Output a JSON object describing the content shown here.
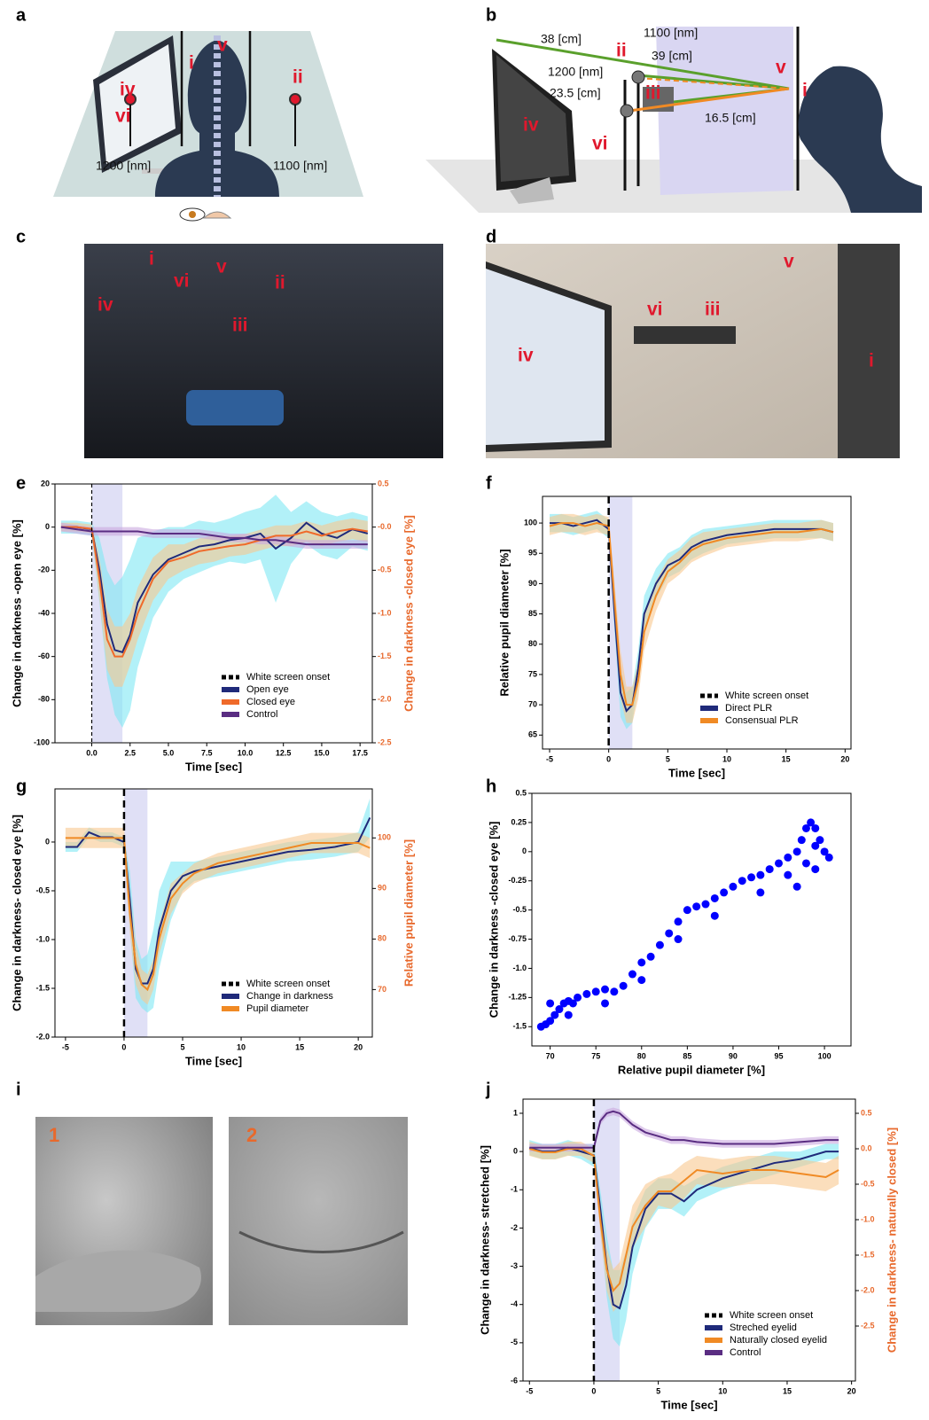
{
  "figure": {
    "panel_letters": [
      "a",
      "b",
      "c",
      "d",
      "e",
      "f",
      "g",
      "h",
      "i",
      "j"
    ],
    "a_labels": [
      "i",
      "v",
      "ii",
      "iv",
      "vi",
      "1200 [nm]",
      "1100 [nm]"
    ],
    "b_labels": [
      "38 [cm]",
      "1100 [nm]",
      "ii",
      "39 [cm]",
      "1200 [nm]",
      "iii",
      "23.5 [cm]",
      "16.5 [cm]",
      "iv",
      "vi",
      "v",
      "i"
    ],
    "c_labels": [
      "i",
      "iv",
      "vi",
      "v",
      "ii",
      "iii"
    ],
    "d_labels": [
      "v",
      "vi",
      "iii",
      "iv",
      "i"
    ],
    "i_labels": [
      "1",
      "2"
    ]
  },
  "chart_data": [
    {
      "type": "line",
      "xlabel": "Time [sec]",
      "ylabel": "Change in darkness -open eye [%]",
      "y2label": "Change in darkness -closed eye [%]",
      "xlim": [
        -2.4,
        18.3
      ],
      "ylim": [
        -100,
        20
      ],
      "y2lim": [
        -2.5,
        0.5
      ],
      "xticks": [
        {
          "value": 0,
          "label": "0.0"
        },
        2.5,
        {
          "value": 5,
          "label": "5.0"
        },
        7.5,
        {
          "value": 10,
          "label": "10.0"
        },
        12.5,
        {
          "value": 15,
          "label": "15.0"
        },
        17.5
      ],
      "yticks": [
        -100,
        -80,
        -60,
        -40,
        -20,
        0,
        20
      ],
      "y2ticks": [
        -2.5,
        {
          "value": -2,
          "label": "-2.0"
        },
        -1.5,
        {
          "value": -1,
          "label": "-1.0"
        },
        -0.5,
        {
          "value": 0,
          "label": "-0.0"
        },
        0.5
      ],
      "highlight": [
        0,
        2
      ],
      "onset": 0,
      "onset_label": "White screen onset",
      "legend": "lower right",
      "x": [
        -2,
        -1,
        0,
        0.5,
        1,
        1.5,
        2,
        2.5,
        3,
        4,
        5,
        6,
        7,
        8,
        9,
        10,
        11,
        12,
        13,
        14,
        15,
        16,
        17,
        18
      ],
      "series": [
        {
          "name": "Open eye",
          "color": "#1f2a7a",
          "band_color": "#7ee8f4",
          "values": [
            0,
            0,
            -1,
            -20,
            -45,
            -57,
            -58,
            -50,
            -35,
            -22,
            -15,
            -12,
            -9,
            -8,
            -6,
            -5,
            -3,
            -10,
            -5,
            2,
            -3,
            -5,
            -1,
            -3
          ],
          "spread": [
            3,
            3,
            3,
            15,
            25,
            30,
            35,
            35,
            30,
            20,
            15,
            12,
            12,
            10,
            10,
            12,
            12,
            25,
            12,
            10,
            10,
            10,
            8,
            8
          ]
        },
        {
          "name": "Closed eye",
          "color": "#ef6a2a",
          "band_color": "#f9c890",
          "axis": "y2",
          "values": [
            0,
            0,
            -0.02,
            -0.6,
            -1.3,
            -1.5,
            -1.5,
            -1.3,
            -1.0,
            -0.6,
            -0.4,
            -0.35,
            -0.28,
            -0.25,
            -0.22,
            -0.2,
            -0.15,
            -0.1,
            -0.1,
            -0.05,
            -0.1,
            -0.05,
            -0.02,
            -0.05
          ],
          "spread": [
            0.05,
            0.05,
            0.05,
            0.25,
            0.35,
            0.35,
            0.35,
            0.3,
            0.3,
            0.25,
            0.2,
            0.15,
            0.15,
            0.15,
            0.12,
            0.12,
            0.12,
            0.12,
            0.12,
            0.12,
            0.12,
            0.12,
            0.12,
            0.12
          ]
        },
        {
          "name": "Control",
          "color": "#5a2d82",
          "band_color": "#c9a9e0",
          "values": [
            0,
            -1,
            -2,
            -2,
            -2,
            -2,
            -2,
            -2,
            -2,
            -3,
            -3,
            -3,
            -3,
            -4,
            -5,
            -5,
            -6,
            -6,
            -7,
            -8,
            -8,
            -8,
            -8,
            -8
          ],
          "spread": [
            2,
            2,
            2,
            2,
            2,
            2,
            2,
            2,
            2,
            2,
            2,
            2,
            2,
            2,
            2,
            2,
            2,
            2,
            2,
            2,
            2,
            2,
            2,
            2
          ]
        }
      ]
    },
    {
      "type": "line",
      "xlabel": "Time [sec]",
      "ylabel": "Relative pupil diameter [%]",
      "xlim": [
        -5.6,
        20.5
      ],
      "ylim": [
        62.7,
        104.4
      ],
      "xticks": [
        -5,
        0,
        5,
        10,
        15,
        20
      ],
      "yticks": [
        65,
        70,
        75,
        80,
        85,
        90,
        95,
        100
      ],
      "highlight": [
        0,
        2
      ],
      "onset": 0,
      "onset_label": "White screen onset",
      "legend": "lower right",
      "x": [
        -5,
        -4,
        -3,
        -2,
        -1,
        0,
        0.5,
        1,
        1.5,
        2,
        2.5,
        3,
        4,
        5,
        6,
        7,
        8,
        10,
        12,
        14,
        16,
        18,
        19
      ],
      "series": [
        {
          "name": "Direct PLR",
          "color": "#1f2a7a",
          "band_color": "#7ee8f4",
          "values": [
            100,
            100,
            99.5,
            100,
            100.5,
            99,
            85,
            72,
            69,
            70,
            76,
            85,
            90,
            93,
            94,
            96,
            97,
            98,
            98.5,
            99,
            99,
            99,
            98.5
          ],
          "spread": [
            1.5,
            1.5,
            1.5,
            1.5,
            1.5,
            1.5,
            3,
            4,
            3,
            3,
            3,
            3,
            2.5,
            2,
            2,
            2,
            2,
            1.5,
            1.5,
            1.5,
            1.5,
            1.5,
            1.5
          ]
        },
        {
          "name": "Consensual PLR",
          "color": "#f08a24",
          "band_color": "#f9c890",
          "values": [
            99.5,
            100,
            100,
            99.5,
            100,
            99.5,
            87,
            75,
            70,
            70,
            74,
            82,
            88,
            92,
            93.5,
            95.5,
            96.5,
            97.5,
            98,
            98.5,
            98.5,
            99,
            98.5
          ],
          "spread": [
            1.5,
            1.5,
            1.5,
            1.5,
            1.5,
            1.5,
            3,
            4,
            3,
            3,
            3,
            3,
            2.5,
            2,
            2,
            2,
            2,
            1.5,
            1.5,
            1.5,
            1.5,
            1.5,
            1.5
          ]
        }
      ]
    },
    {
      "type": "line",
      "xlabel": "Time [sec]",
      "ylabel": "Change in darkness- closed eye [%]",
      "y2label": "Relative pupil diameter [%]",
      "xlim": [
        -5.9,
        21.2
      ],
      "ylim": [
        -2.0,
        0.545
      ],
      "y2lim": [
        60.6,
        109.7
      ],
      "xticks": [
        -5,
        0,
        5,
        10,
        15,
        20
      ],
      "yticks": [
        {
          "value": -2,
          "label": "-2.0"
        },
        -1.5,
        {
          "value": -1,
          "label": "-1.0"
        },
        -0.5,
        0
      ],
      "y2ticks": [
        70,
        80,
        90,
        100
      ],
      "highlight": [
        0,
        2
      ],
      "onset": 0,
      "onset_label": "White screen onset",
      "legend": "lower right",
      "x": [
        -5,
        -4,
        -3,
        -2,
        -1,
        0,
        0.5,
        1,
        1.5,
        2,
        2.5,
        3,
        4,
        5,
        6,
        8,
        10,
        12,
        14,
        16,
        18,
        20,
        21
      ],
      "series": [
        {
          "name": "Change in darkness",
          "color": "#1f2a7a",
          "band_color": "#7ee8f4",
          "values": [
            -0.05,
            -0.05,
            0.1,
            0.05,
            0.05,
            0,
            -0.6,
            -1.3,
            -1.45,
            -1.45,
            -1.3,
            -0.9,
            -0.5,
            -0.35,
            -0.3,
            -0.25,
            -0.2,
            -0.15,
            -0.1,
            -0.08,
            -0.05,
            0,
            0.25
          ],
          "spread": [
            0.05,
            0.05,
            0.05,
            0.05,
            0.05,
            0.05,
            0.3,
            0.3,
            0.25,
            0.3,
            0.4,
            0.4,
            0.3,
            0.15,
            0.1,
            0.1,
            0.1,
            0.1,
            0.1,
            0.1,
            0.1,
            0.1,
            0.2
          ]
        },
        {
          "name": "Pupil diameter",
          "color": "#f08a24",
          "band_color": "#f9c890",
          "axis": "y2",
          "values": [
            100,
            100,
            100,
            100,
            100,
            100,
            85,
            75,
            71,
            70,
            73,
            80,
            88,
            91,
            93,
            95,
            96,
            97,
            98,
            99,
            99,
            99,
            98
          ],
          "spread": [
            2,
            2,
            2,
            2,
            2,
            2,
            4,
            4,
            3,
            3,
            3,
            3,
            3,
            2,
            2,
            2,
            2,
            2,
            2,
            2,
            2,
            2,
            2
          ]
        }
      ]
    },
    {
      "type": "scatter",
      "xlabel": "Relative pupil diameter [%]",
      "ylabel": "Change in darkness -closed eye [%]",
      "xlim": [
        68,
        102.9
      ],
      "ylim": [
        -1.665,
        0.5
      ],
      "xticks": [
        70,
        75,
        80,
        85,
        90,
        95,
        100
      ],
      "yticks": [
        0.5,
        0.25,
        0,
        -0.25,
        -0.5,
        -0.75,
        {
          "value": -1,
          "label": "-1.0"
        },
        -1.25,
        -1.5
      ],
      "color": "#0000ff",
      "x": [
        69,
        69.5,
        70,
        70.5,
        71,
        71.5,
        72,
        72.5,
        73,
        74,
        75,
        76,
        77,
        78,
        79,
        80,
        81,
        82,
        83,
        84,
        85,
        86,
        87,
        88,
        89,
        90,
        91,
        92,
        93,
        94,
        95,
        96,
        97,
        97.5,
        98,
        98.5,
        99,
        99.5,
        100,
        100.5,
        96,
        97,
        98,
        99,
        88,
        84,
        80,
        76,
        72,
        70,
        93,
        99
      ],
      "values": [
        -1.5,
        -1.48,
        -1.45,
        -1.4,
        -1.35,
        -1.3,
        -1.28,
        -1.3,
        -1.25,
        -1.22,
        -1.2,
        -1.18,
        -1.2,
        -1.15,
        -1.05,
        -0.95,
        -0.9,
        -0.8,
        -0.7,
        -0.6,
        -0.5,
        -0.47,
        -0.45,
        -0.4,
        -0.35,
        -0.3,
        -0.25,
        -0.22,
        -0.2,
        -0.15,
        -0.1,
        -0.05,
        0,
        0.1,
        0.2,
        0.25,
        0.2,
        0.1,
        0,
        -0.05,
        -0.2,
        -0.3,
        -0.1,
        -0.15,
        -0.55,
        -0.75,
        -1.1,
        -1.3,
        -1.4,
        -1.3,
        -0.35,
        0.05
      ]
    },
    {
      "type": "line",
      "xlabel": "Time [sec]",
      "ylabel": "Change in darkness- stretched [%]",
      "y2label": "Change in darkness- naturally closed  [%]",
      "xlim": [
        -5.5,
        20.3
      ],
      "ylim": [
        -6,
        1.37
      ],
      "y2lim": [
        -3.275,
        0.7
      ],
      "xticks": [
        -5,
        0,
        5,
        10,
        15,
        20
      ],
      "yticks": [
        -6,
        -5,
        -4,
        -3,
        -2,
        -1,
        0,
        1
      ],
      "y2ticks": [
        -2.5,
        {
          "value": -2,
          "label": "-2.0"
        },
        -1.5,
        {
          "value": -1,
          "label": "-1.0"
        },
        -0.5,
        {
          "value": 0,
          "label": "0.0"
        },
        0.5
      ],
      "highlight": [
        0,
        2
      ],
      "onset": 0,
      "onset_label": "White screen onset",
      "legend": "lower right",
      "x": [
        -5,
        -4,
        -3,
        -2,
        -1,
        0,
        0.5,
        1,
        1.5,
        2,
        2.5,
        3,
        4,
        5,
        6,
        7,
        8,
        10,
        12,
        14,
        16,
        18,
        19
      ],
      "series": [
        {
          "name": "Streched eyelid",
          "color": "#1f2a7a",
          "band_color": "#7ee8f4",
          "values": [
            0.1,
            0,
            0,
            0.1,
            0,
            -0.1,
            -1.5,
            -3,
            -4,
            -4.1,
            -3.5,
            -2.5,
            -1.5,
            -1.1,
            -1.1,
            -1.3,
            -1,
            -0.7,
            -0.5,
            -0.3,
            -0.2,
            0,
            0
          ],
          "spread": [
            0.2,
            0.2,
            0.2,
            0.2,
            0.2,
            0.3,
            0.5,
            0.8,
            0.9,
            1,
            0.9,
            0.7,
            0.5,
            0.4,
            0.4,
            0.4,
            0.3,
            0.3,
            0.3,
            0.3,
            0.2,
            0.2,
            0.2
          ]
        },
        {
          "name": "Naturally closed eyelid",
          "color": "#f08a24",
          "band_color": "#f9c890",
          "axis": "y2",
          "values": [
            0,
            -0.05,
            -0.05,
            0,
            0,
            -0.1,
            -1,
            -1.7,
            -2,
            -1.9,
            -1.5,
            -1.1,
            -0.8,
            -0.6,
            -0.6,
            -0.45,
            -0.3,
            -0.35,
            -0.3,
            -0.3,
            -0.35,
            -0.4,
            -0.3
          ],
          "spread": [
            0.1,
            0.1,
            0.1,
            0.1,
            0.1,
            0.1,
            0.2,
            0.3,
            0.3,
            0.3,
            0.3,
            0.3,
            0.3,
            0.2,
            0.25,
            0.25,
            0.2,
            0.2,
            0.2,
            0.2,
            0.2,
            0.2,
            0.2
          ]
        },
        {
          "name": "Control",
          "color": "#5a2d82",
          "band_color": "#c9a9e0",
          "values": [
            0.1,
            0.1,
            0.1,
            0.1,
            0.1,
            0.1,
            0.8,
            1,
            1.05,
            1,
            0.85,
            0.7,
            0.5,
            0.4,
            0.3,
            0.3,
            0.25,
            0.2,
            0.2,
            0.2,
            0.25,
            0.3,
            0.3
          ],
          "spread": [
            0.1,
            0.1,
            0.1,
            0.1,
            0.1,
            0.1,
            0.1,
            0.1,
            0.1,
            0.1,
            0.1,
            0.1,
            0.1,
            0.1,
            0.1,
            0.1,
            0.1,
            0.1,
            0.1,
            0.1,
            0.1,
            0.1,
            0.1
          ]
        }
      ]
    }
  ]
}
